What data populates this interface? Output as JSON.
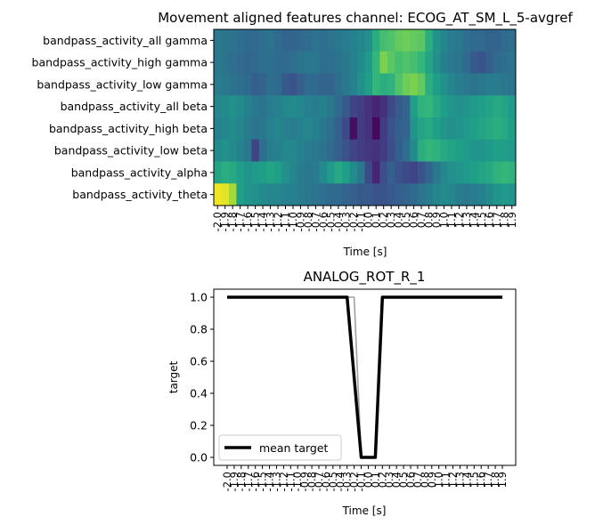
{
  "chart_data": [
    {
      "type": "heatmap",
      "title": "Movement aligned features channel: ECOG_AT_SM_L_5-avgref",
      "xlabel": "Time [s]",
      "x_ticks": [
        "-2.0",
        "-1.9",
        "-1.8",
        "-1.7",
        "-1.6",
        "-1.5",
        "-1.4",
        "-1.3",
        "-1.2",
        "-1.1",
        "-1.0",
        "-0.9",
        "-0.8",
        "-0.7",
        "-0.6",
        "-0.5",
        "-0.4",
        "-0.3",
        "-0.2",
        "-0.1",
        "0.0",
        "0.1",
        "0.2",
        "0.3",
        "0.4",
        "0.5",
        "0.6",
        "0.7",
        "0.8",
        "0.9",
        "1.0",
        "1.1",
        "1.2",
        "1.3",
        "1.4",
        "1.5",
        "1.6",
        "1.7",
        "1.8",
        "1.9"
      ],
      "rows": [
        "bandpass_activity_all gamma",
        "bandpass_activity_high gamma",
        "bandpass_activity_low gamma",
        "bandpass_activity_all beta",
        "bandpass_activity_high beta",
        "bandpass_activity_low beta",
        "bandpass_activity_alpha",
        "bandpass_activity_theta"
      ],
      "colormap": "viridis",
      "values": [
        [
          0.4,
          0.38,
          0.38,
          0.36,
          0.34,
          0.34,
          0.36,
          0.38,
          0.34,
          0.32,
          0.32,
          0.34,
          0.35,
          0.38,
          0.36,
          0.38,
          0.4,
          0.42,
          0.44,
          0.46,
          0.5,
          0.62,
          0.7,
          0.72,
          0.76,
          0.78,
          0.76,
          0.74,
          0.62,
          0.52,
          0.46,
          0.42,
          0.4,
          0.36,
          0.34,
          0.34,
          0.32,
          0.32,
          0.34,
          0.36
        ],
        [
          0.4,
          0.38,
          0.36,
          0.34,
          0.33,
          0.34,
          0.36,
          0.36,
          0.34,
          0.34,
          0.36,
          0.38,
          0.4,
          0.4,
          0.36,
          0.36,
          0.38,
          0.4,
          0.44,
          0.48,
          0.54,
          0.66,
          0.8,
          0.74,
          0.7,
          0.72,
          0.7,
          0.66,
          0.58,
          0.5,
          0.44,
          0.4,
          0.38,
          0.34,
          0.28,
          0.26,
          0.3,
          0.34,
          0.36,
          0.38
        ],
        [
          0.42,
          0.4,
          0.38,
          0.36,
          0.34,
          0.3,
          0.32,
          0.36,
          0.34,
          0.28,
          0.26,
          0.3,
          0.34,
          0.34,
          0.32,
          0.32,
          0.36,
          0.4,
          0.44,
          0.5,
          0.56,
          0.66,
          0.62,
          0.64,
          0.72,
          0.78,
          0.8,
          0.76,
          0.62,
          0.56,
          0.5,
          0.46,
          0.42,
          0.4,
          0.38,
          0.4,
          0.42,
          0.42,
          0.4,
          0.38
        ],
        [
          0.46,
          0.48,
          0.5,
          0.48,
          0.44,
          0.4,
          0.38,
          0.42,
          0.44,
          0.46,
          0.48,
          0.46,
          0.44,
          0.42,
          0.44,
          0.4,
          0.34,
          0.28,
          0.2,
          0.18,
          0.14,
          0.1,
          0.14,
          0.22,
          0.28,
          0.32,
          0.56,
          0.64,
          0.66,
          0.6,
          0.56,
          0.52,
          0.5,
          0.52,
          0.54,
          0.56,
          0.58,
          0.6,
          0.58,
          0.54
        ],
        [
          0.44,
          0.46,
          0.48,
          0.46,
          0.42,
          0.38,
          0.4,
          0.44,
          0.46,
          0.44,
          0.42,
          0.44,
          0.46,
          0.44,
          0.4,
          0.36,
          0.3,
          0.22,
          0.04,
          0.18,
          0.14,
          0.02,
          0.18,
          0.26,
          0.3,
          0.32,
          0.52,
          0.58,
          0.6,
          0.56,
          0.52,
          0.5,
          0.52,
          0.54,
          0.56,
          0.58,
          0.6,
          0.62,
          0.6,
          0.56
        ],
        [
          0.48,
          0.5,
          0.48,
          0.44,
          0.4,
          0.2,
          0.36,
          0.42,
          0.44,
          0.46,
          0.46,
          0.44,
          0.42,
          0.4,
          0.38,
          0.34,
          0.3,
          0.26,
          0.2,
          0.18,
          0.16,
          0.14,
          0.18,
          0.24,
          0.3,
          0.36,
          0.48,
          0.62,
          0.66,
          0.64,
          0.6,
          0.58,
          0.56,
          0.54,
          0.52,
          0.52,
          0.54,
          0.56,
          0.56,
          0.54
        ],
        [
          0.58,
          0.62,
          0.6,
          0.56,
          0.52,
          0.54,
          0.56,
          0.58,
          0.56,
          0.5,
          0.46,
          0.42,
          0.4,
          0.42,
          0.48,
          0.54,
          0.6,
          0.56,
          0.48,
          0.4,
          0.22,
          0.1,
          0.24,
          0.3,
          0.26,
          0.22,
          0.2,
          0.26,
          0.32,
          0.4,
          0.46,
          0.5,
          0.52,
          0.54,
          0.56,
          0.58,
          0.6,
          0.64,
          0.66,
          0.64
        ],
        [
          0.98,
          0.96,
          0.86,
          0.56,
          0.52,
          0.5,
          0.48,
          0.46,
          0.46,
          0.44,
          0.44,
          0.42,
          0.4,
          0.38,
          0.36,
          0.34,
          0.34,
          0.32,
          0.3,
          0.28,
          0.28,
          0.26,
          0.26,
          0.28,
          0.3,
          0.32,
          0.34,
          0.38,
          0.42,
          0.46,
          0.48,
          0.46,
          0.42,
          0.4,
          0.42,
          0.44,
          0.48,
          0.52,
          0.54,
          0.52
        ]
      ]
    },
    {
      "type": "line",
      "title": "ANALOG_ROT_R_1",
      "xlabel": "Time [s]",
      "ylabel": "target",
      "x_ticks": [
        "-2.0",
        "-1.9",
        "-1.8",
        "-1.7",
        "-1.6",
        "-1.5",
        "-1.4",
        "-1.3",
        "-1.2",
        "-1.1",
        "-1.0",
        "-0.9",
        "-0.8",
        "-0.7",
        "-0.6",
        "-0.5",
        "-0.4",
        "-0.3",
        "-0.2",
        "-0.1",
        "0.0",
        "0.1",
        "0.2",
        "0.3",
        "0.4",
        "0.5",
        "0.6",
        "0.7",
        "0.8",
        "0.9",
        "1.0",
        "1.1",
        "1.2",
        "1.3",
        "1.4",
        "1.5",
        "1.6",
        "1.7",
        "1.8",
        "1.9"
      ],
      "y_ticks": [
        "0.0",
        "0.2",
        "0.4",
        "0.6",
        "0.8",
        "1.0"
      ],
      "ylim": [
        -0.05,
        1.05
      ],
      "legend": "lower-left",
      "series": [
        {
          "name": "mean target",
          "color": "#000000",
          "values": [
            1,
            1,
            1,
            1,
            1,
            1,
            1,
            1,
            1,
            1,
            1,
            1,
            1,
            1,
            1,
            1,
            1,
            1,
            0.5,
            0,
            0,
            0,
            1,
            1,
            1,
            1,
            1,
            1,
            1,
            1,
            1,
            1,
            1,
            1,
            1,
            1,
            1,
            1,
            1,
            1
          ]
        },
        {
          "color": "#a0a0a0",
          "values": [
            1,
            1,
            1,
            1,
            1,
            1,
            1,
            1,
            1,
            1,
            1,
            1,
            1,
            1,
            1,
            1,
            1,
            1,
            1,
            0,
            0,
            0,
            1,
            1,
            1,
            1,
            1,
            1,
            1,
            1,
            1,
            1,
            1,
            1,
            1,
            1,
            1,
            1,
            1,
            1
          ]
        }
      ]
    }
  ]
}
